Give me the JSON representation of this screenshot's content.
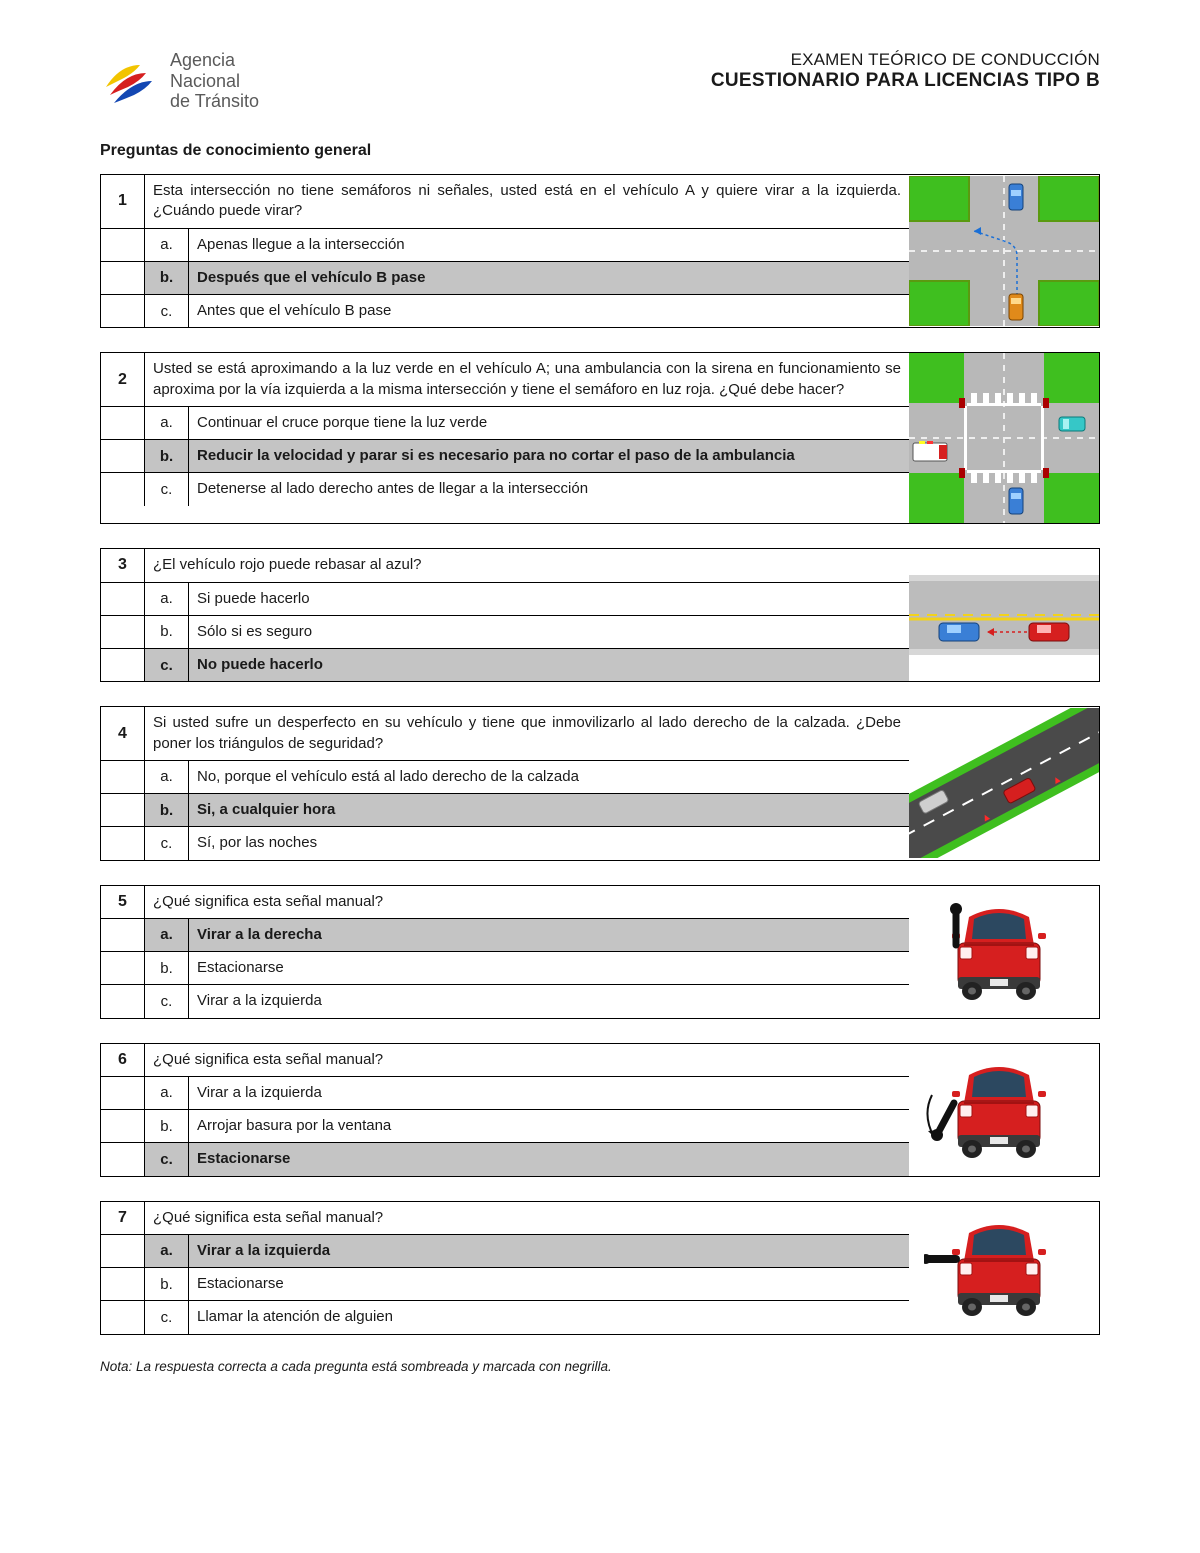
{
  "agency_name_l1": "Agencia",
  "agency_name_l2": "Nacional",
  "agency_name_l3": "de Tránsito",
  "header_small": "EXAMEN TEÓRICO DE CONDUCCIÓN",
  "header_big": "CUESTIONARIO PARA LICENCIAS TIPO B",
  "section_title": "Preguntas de conocimiento general",
  "footnote": "Nota: La respuesta correcta a cada pregunta está sombreada y marcada con negrilla.",
  "colors": {
    "border": "#000000",
    "correct_bg": "#c4c4c4",
    "grass": "#3fbf1f",
    "road": "#b8b8b8",
    "road_dark": "#6b6b6b",
    "lane_yellow": "#f2d21a",
    "lane_white": "#ffffff",
    "car_red": "#d61f1f",
    "car_red_dark": "#a31212",
    "car_blue": "#3a7fd6",
    "car_orange": "#e08a1a",
    "car_teal": "#36c7c7",
    "window": "#2c4860",
    "tire": "#222222"
  },
  "questions": [
    {
      "num": "1",
      "prompt": "Esta intersección no tiene semáforos ni señales, usted está en el vehículo A y quiere virar a la izquierda. ¿Cuándo puede virar?",
      "choices": [
        {
          "l": "a.",
          "t": "Apenas llegue a la intersección",
          "c": false
        },
        {
          "l": "b.",
          "t": "Después que el vehículo B pase",
          "c": true
        },
        {
          "l": "c.",
          "t": "Antes que el vehículo B pase",
          "c": false
        }
      ],
      "img": "intersection-no-signals"
    },
    {
      "num": "2",
      "prompt": "Usted se está aproximando a la luz verde en el vehículo A; una ambulancia con la sirena en funcionamiento se aproxima por la vía izquierda a la misma intersección y tiene el semáforo en luz roja. ¿Qué debe hacer?",
      "choices": [
        {
          "l": "a.",
          "t": "Continuar el cruce porque tiene la luz verde",
          "c": false
        },
        {
          "l": "b.",
          "t": "Reducir la velocidad y parar si es necesario para no cortar el paso de la ambulancia",
          "c": true
        },
        {
          "l": "c.",
          "t": "Detenerse al lado derecho antes de llegar a la intersección",
          "c": false
        }
      ],
      "img": "intersection-ambulance"
    },
    {
      "num": "3",
      "prompt": "¿El vehículo rojo puede rebasar al azul?",
      "choices": [
        {
          "l": "a.",
          "t": "Si puede hacerlo",
          "c": false
        },
        {
          "l": "b.",
          "t": "Sólo si es seguro",
          "c": false
        },
        {
          "l": "c.",
          "t": "No puede hacerlo",
          "c": true
        }
      ],
      "img": "overtake-road"
    },
    {
      "num": "4",
      "prompt": "Si usted sufre un desperfecto en su vehículo y tiene que inmovilizarlo al lado derecho de la calzada. ¿Debe poner los triángulos de seguridad?",
      "choices": [
        {
          "l": "a.",
          "t": "No, porque el vehículo está al lado derecho de la calzada",
          "c": false
        },
        {
          "l": "b.",
          "t": "Si, a cualquier hora",
          "c": true
        },
        {
          "l": "c.",
          "t": "Sí, por las noches",
          "c": false
        }
      ],
      "img": "diagonal-road"
    },
    {
      "num": "5",
      "prompt": "¿Qué significa esta señal manual?",
      "choices": [
        {
          "l": "a.",
          "t": "Virar a la derecha",
          "c": true
        },
        {
          "l": "b.",
          "t": "Estacionarse",
          "c": false
        },
        {
          "l": "c.",
          "t": "Virar a la izquierda",
          "c": false
        }
      ],
      "img": "car-signal-up"
    },
    {
      "num": "6",
      "prompt": "¿Qué significa esta señal manual?",
      "choices": [
        {
          "l": "a.",
          "t": "Virar a la izquierda",
          "c": false
        },
        {
          "l": "b.",
          "t": "Arrojar basura por la ventana",
          "c": false
        },
        {
          "l": "c.",
          "t": "Estacionarse",
          "c": true
        }
      ],
      "img": "car-signal-down"
    },
    {
      "num": "7",
      "prompt": "¿Qué significa esta señal manual?",
      "choices": [
        {
          "l": "a.",
          "t": "Virar a la izquierda",
          "c": true
        },
        {
          "l": "b.",
          "t": "Estacionarse",
          "c": false
        },
        {
          "l": "c.",
          "t": "Llamar la atención de alguien",
          "c": false
        }
      ],
      "img": "car-signal-left"
    }
  ]
}
